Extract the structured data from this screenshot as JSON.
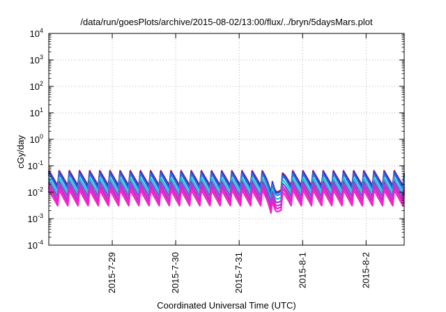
{
  "chart_data": {
    "type": "line",
    "title": "/data/run/goesPlots/archive/2015-08-02/13:00/flux/../bryn/5daysMars.plot",
    "xlabel": "Coordinated Universal Time (UTC)",
    "ylabel": "cGy/day",
    "yscale": "log",
    "ylim": [
      0.0001,
      10000
    ],
    "y_ticks": [
      {
        "value": 0.0001,
        "base": "10",
        "exp": "-4"
      },
      {
        "value": 0.001,
        "base": "10",
        "exp": "-3"
      },
      {
        "value": 0.01,
        "base": "10",
        "exp": "-2"
      },
      {
        "value": 0.1,
        "base": "10",
        "exp": "-1"
      },
      {
        "value": 1,
        "base": "10",
        "exp": "0"
      },
      {
        "value": 10,
        "base": "10",
        "exp": "1"
      },
      {
        "value": 100,
        "base": "10",
        "exp": "2"
      },
      {
        "value": 1000,
        "base": "10",
        "exp": "3"
      },
      {
        "value": 10000,
        "base": "10",
        "exp": "4"
      }
    ],
    "xlim": [
      0,
      5.6
    ],
    "x_ticks": [
      {
        "value": 1,
        "label": "2015-7-29"
      },
      {
        "value": 2,
        "label": "2015-7-30"
      },
      {
        "value": 3,
        "label": "2015-7-31"
      },
      {
        "value": 4,
        "label": "2015-8-1"
      },
      {
        "value": 5,
        "label": "2015-8-2"
      }
    ],
    "grid": true,
    "pattern": {
      "period_days": 0.16,
      "dip_day": 3.57,
      "notes": "sawtooth: rapid rise then slow decay each period; dip around 2015-7-31 afternoon"
    },
    "series": [
      {
        "color": "#d62020",
        "peak": 0.065,
        "trough": 0.018
      },
      {
        "color": "#1e3cd8",
        "peak": 0.06,
        "trough": 0.016
      },
      {
        "color": "#2f6ee8",
        "peak": 0.05,
        "trough": 0.013
      },
      {
        "color": "#10c8d0",
        "peak": 0.035,
        "trough": 0.0095
      },
      {
        "color": "#6a4fd6",
        "peak": 0.026,
        "trough": 0.007
      },
      {
        "color": "#b040c8",
        "peak": 0.02,
        "trough": 0.0052
      },
      {
        "color": "#e020d0",
        "peak": 0.016,
        "trough": 0.0041
      },
      {
        "color": "#ff1acc",
        "peak": 0.012,
        "trough": 0.0031
      }
    ]
  }
}
